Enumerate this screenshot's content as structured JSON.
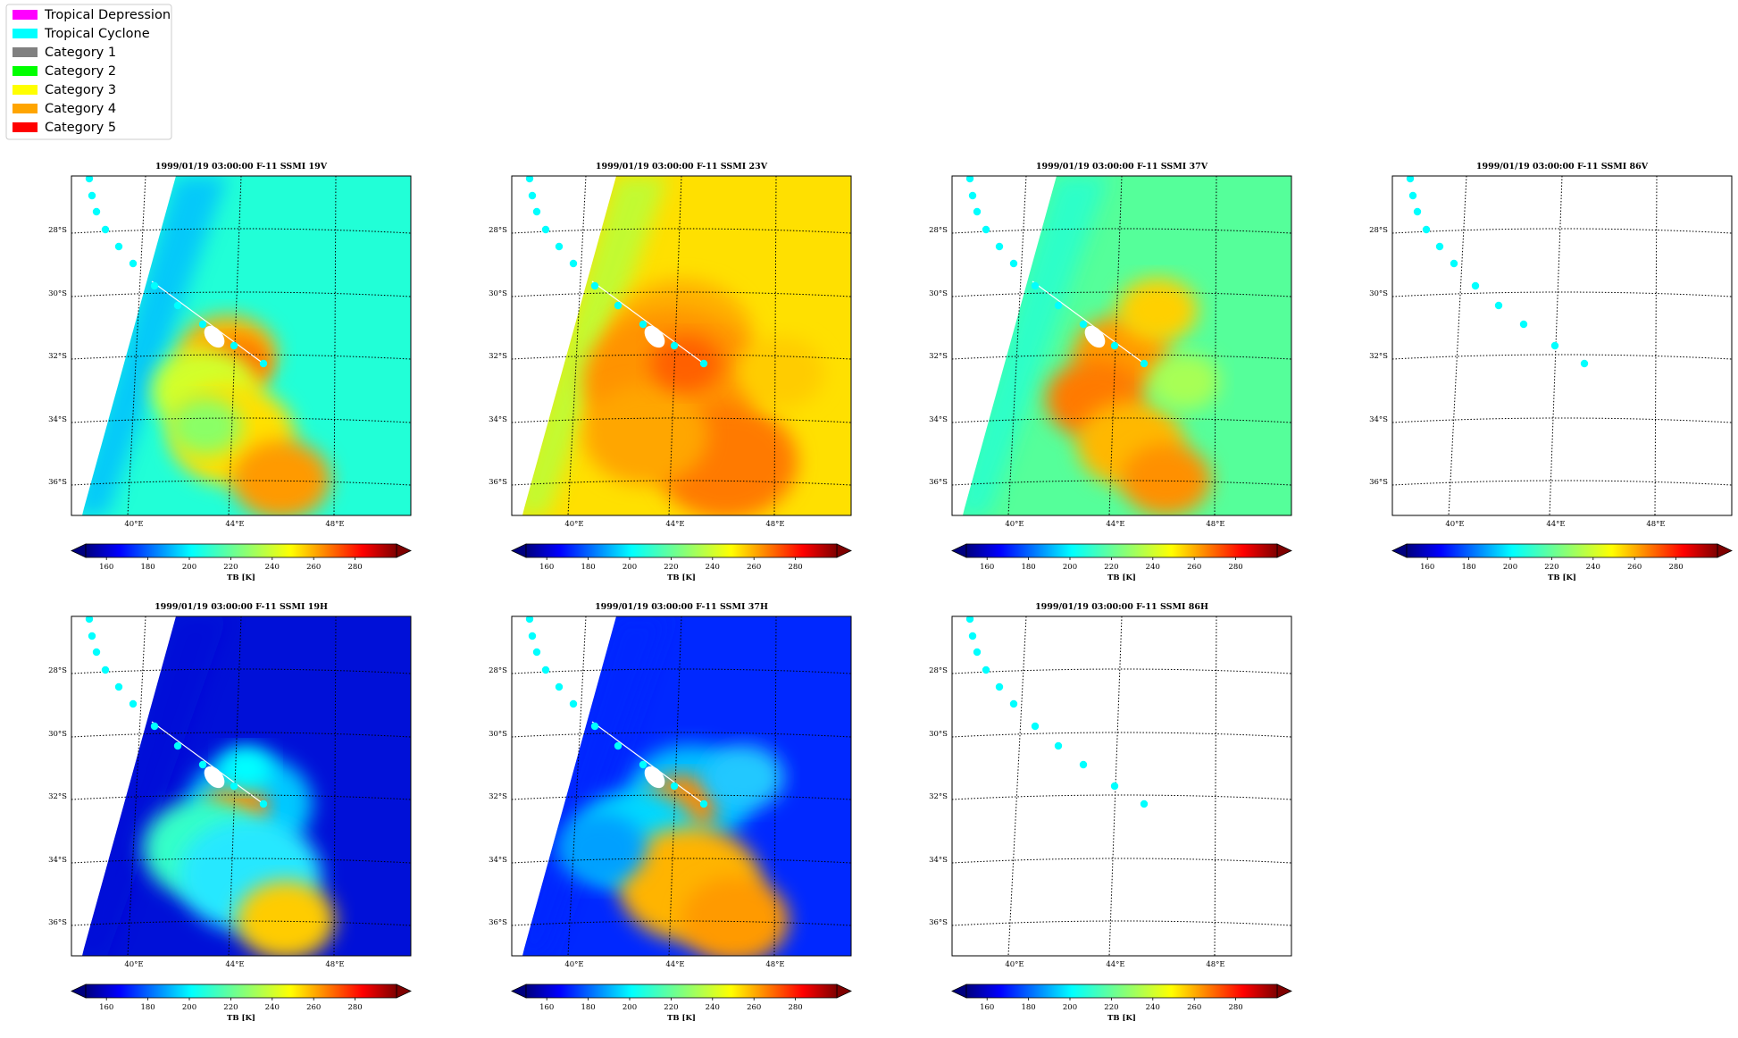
{
  "legend": {
    "items": [
      {
        "label": "Tropical Depression",
        "color": "#ff00ff"
      },
      {
        "label": "Tropical Cyclone",
        "color": "#00ffff"
      },
      {
        "label": "Category 1",
        "color": "#808080"
      },
      {
        "label": "Category 2",
        "color": "#00ff00"
      },
      {
        "label": "Category 3",
        "color": "#ffff00"
      },
      {
        "label": "Category 4",
        "color": "#ffa500"
      },
      {
        "label": "Category 5",
        "color": "#ff0000"
      }
    ]
  },
  "colorbar": {
    "ticks": [
      "160",
      "180",
      "200",
      "220",
      "240",
      "260",
      "280"
    ],
    "label": "TB [K]",
    "colormap": "jet",
    "range": [
      150,
      300
    ]
  },
  "chart_data": [
    {
      "type": "heatmap",
      "title": "1999/01/19 03:00:00  F-11 SSMI 19V",
      "field": "warm",
      "has_data": true
    },
    {
      "type": "heatmap",
      "title": "1999/01/19 03:00:00  F-11 SSMI 23V",
      "field": "hot",
      "has_data": true
    },
    {
      "type": "heatmap",
      "title": "1999/01/19 03:00:00  F-11 SSMI 37V",
      "field": "mid",
      "has_data": true
    },
    {
      "type": "heatmap",
      "title": "1999/01/19 03:00:00  F-11 SSMI 86V",
      "field": "none",
      "has_data": false
    },
    {
      "type": "heatmap",
      "title": "1999/01/19 03:00:00  F-11 SSMI 19H",
      "field": "cold",
      "has_data": true
    },
    {
      "type": "heatmap",
      "title": "1999/01/19 03:00:00  F-11 SSMI 37H",
      "field": "cold37",
      "has_data": true
    },
    {
      "type": "heatmap",
      "title": "1999/01/19 03:00:00  F-11 SSMI 86H",
      "field": "none",
      "has_data": false
    }
  ],
  "map": {
    "lat_labels": [
      "28°S",
      "30°S",
      "32°S",
      "34°S",
      "36°S"
    ],
    "lon_labels": [
      "40°E",
      "44°E",
      "48°E"
    ],
    "track_color": "#00ffff"
  }
}
